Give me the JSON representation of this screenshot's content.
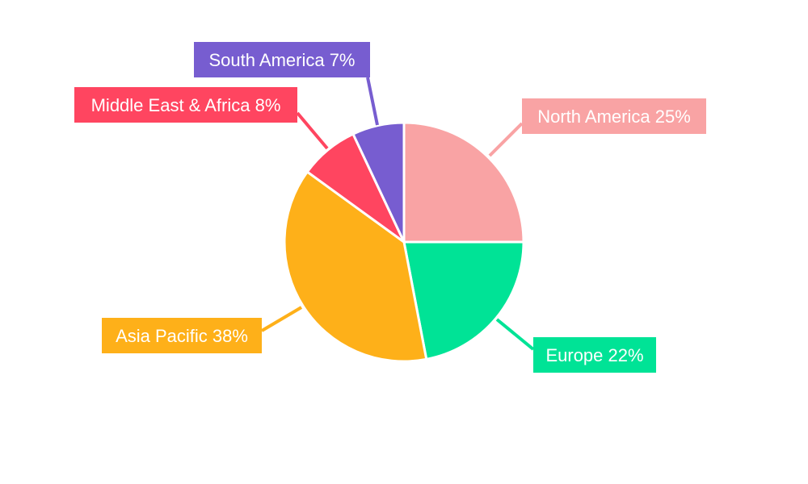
{
  "chart_data": {
    "type": "pie",
    "title": "",
    "start_angle": "12 o'clock, clockwise",
    "slices": [
      {
        "label": "North America",
        "value": 25,
        "text": "North America 25%",
        "color": "#F9A3A4"
      },
      {
        "label": "Europe",
        "value": 22,
        "text": "Europe 22%",
        "color": "#00E396"
      },
      {
        "label": "Asia Pacific",
        "value": 38,
        "text": "Asia Pacific 38%",
        "color": "#FEB019"
      },
      {
        "label": "Middle East & Africa",
        "value": 8,
        "text": "Middle East & Africa 8%",
        "color": "#FF4560"
      },
      {
        "label": "South America",
        "value": 7,
        "text": "South America 7%",
        "color": "#775DD0"
      }
    ]
  }
}
